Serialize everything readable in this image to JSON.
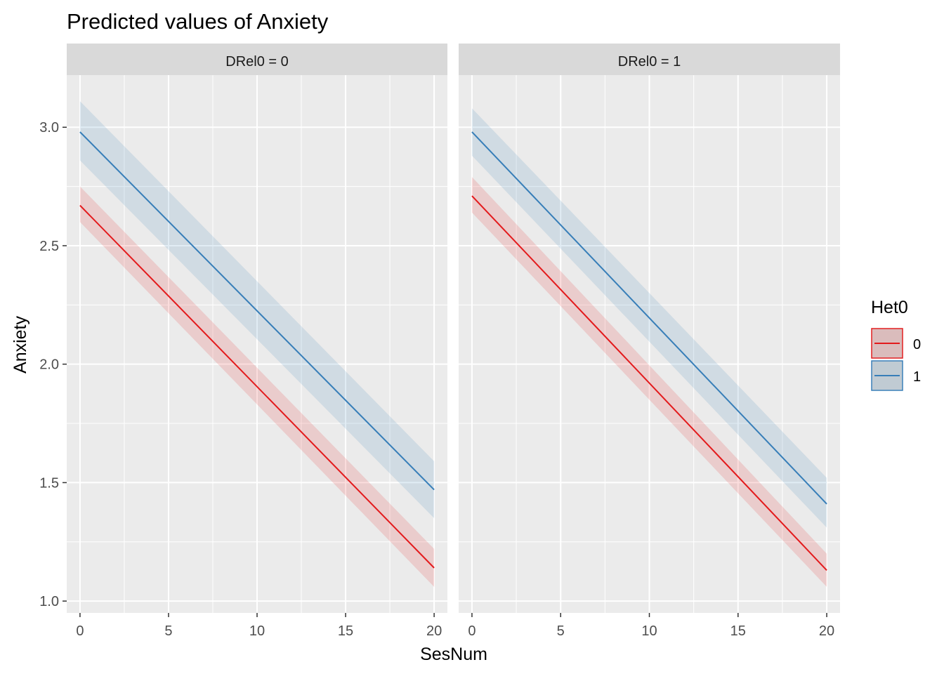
{
  "chart_data": {
    "type": "line",
    "title": "Predicted values of Anxiety",
    "xlabel": "SesNum",
    "ylabel": "Anxiety",
    "xlim": [
      -0.75,
      20.75
    ],
    "ylim": [
      0.95,
      3.22
    ],
    "x_ticks": [
      0,
      5,
      10,
      15,
      20
    ],
    "y_ticks": [
      1.0,
      1.5,
      2.0,
      2.5,
      3.0
    ],
    "y_tick_labels": [
      "1.0",
      "1.5",
      "2.0",
      "2.5",
      "3.0"
    ],
    "grid": true,
    "legend": {
      "title": "Het0",
      "position": "right",
      "entries": [
        {
          "label": "0",
          "color": "#e31a1c"
        },
        {
          "label": "1",
          "color": "#377eb8"
        }
      ]
    },
    "panels": [
      {
        "label": "DRel0 = 0",
        "series": [
          {
            "name": "0",
            "color": "#e31a1c",
            "x": [
              0,
              20
            ],
            "y": [
              2.67,
              1.14
            ],
            "ci_low": [
              2.6,
              1.06
            ],
            "ci_high": [
              2.75,
              1.22
            ]
          },
          {
            "name": "1",
            "color": "#377eb8",
            "x": [
              0,
              20
            ],
            "y": [
              2.98,
              1.47
            ],
            "ci_low": [
              2.86,
              1.35
            ],
            "ci_high": [
              3.11,
              1.59
            ]
          }
        ]
      },
      {
        "label": "DRel0 = 1",
        "series": [
          {
            "name": "0",
            "color": "#e31a1c",
            "x": [
              0,
              20
            ],
            "y": [
              2.71,
              1.13
            ],
            "ci_low": [
              2.64,
              1.06
            ],
            "ci_high": [
              2.79,
              1.2
            ]
          },
          {
            "name": "1",
            "color": "#377eb8",
            "x": [
              0,
              20
            ],
            "y": [
              2.98,
              1.41
            ],
            "ci_low": [
              2.88,
              1.31
            ],
            "ci_high": [
              3.08,
              1.52
            ]
          }
        ]
      }
    ]
  }
}
